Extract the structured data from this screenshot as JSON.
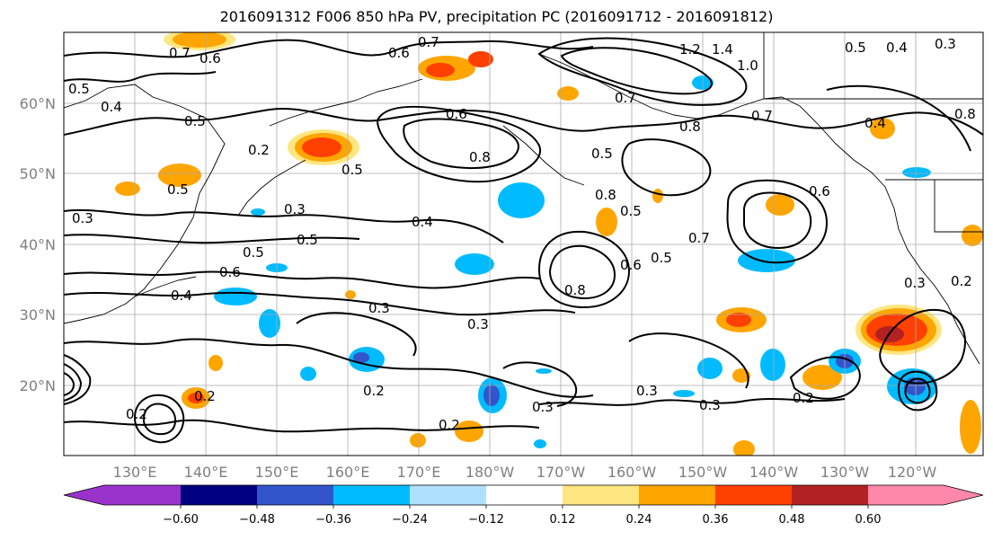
{
  "title": "2016091312 F006 850 hPa PV, precipitation PC (2016091712 - 2016091812)",
  "colors": {
    "purple": "#9933cc",
    "navy": "#000080",
    "blue": "#3355cc",
    "deepskyblue": "#00bbff",
    "lightblue": "#b0e0ff",
    "white": "#ffffff",
    "lightyellow": "#ffe680",
    "orange": "#ffa500",
    "orangered": "#ff4000",
    "firebrick": "#b22222",
    "pink": "#ff88aa",
    "contour": "#000000",
    "grid": "#aaaaaa",
    "axis_text": "#7f7f7f"
  },
  "map": {
    "lat_labels": [
      "60°N",
      "50°N",
      "40°N",
      "30°N",
      "20°N"
    ],
    "lon_labels": [
      "130°E",
      "140°E",
      "150°E",
      "160°E",
      "170°E",
      "180°W",
      "170°W",
      "160°W",
      "150°W",
      "140°W",
      "130°W",
      "120°W"
    ]
  },
  "colorbar": {
    "ticks": [
      "−0.60",
      "−0.48",
      "−0.36",
      "−0.24",
      "−0.12",
      "0.12",
      "0.24",
      "0.36",
      "0.48",
      "0.60"
    ]
  },
  "contour_labels": [
    "0.7",
    "0.6",
    "0.6",
    "0.7",
    "1.2",
    "1.4",
    "1.0",
    "0.5",
    "0.4",
    "0.3",
    "0.5",
    "0.4",
    "0.5",
    "0.2",
    "0.5",
    "0.6",
    "0.8",
    "0.5",
    "0.7",
    "0.8",
    "0.7",
    "0.4",
    "0.3",
    "0.5",
    "0.5",
    "0.4",
    "0.8",
    "0.5",
    "0.6",
    "0.3",
    "0.6",
    "0.4",
    "0.5",
    "0.3",
    "0.3",
    "0.7",
    "0.8",
    "0.5",
    "0.6",
    "0.3",
    "0.2",
    "0.3",
    "0.2",
    "0.2",
    "0.3",
    "0.2",
    "0.2",
    "0.8",
    "0.3",
    "0.2"
  ]
}
